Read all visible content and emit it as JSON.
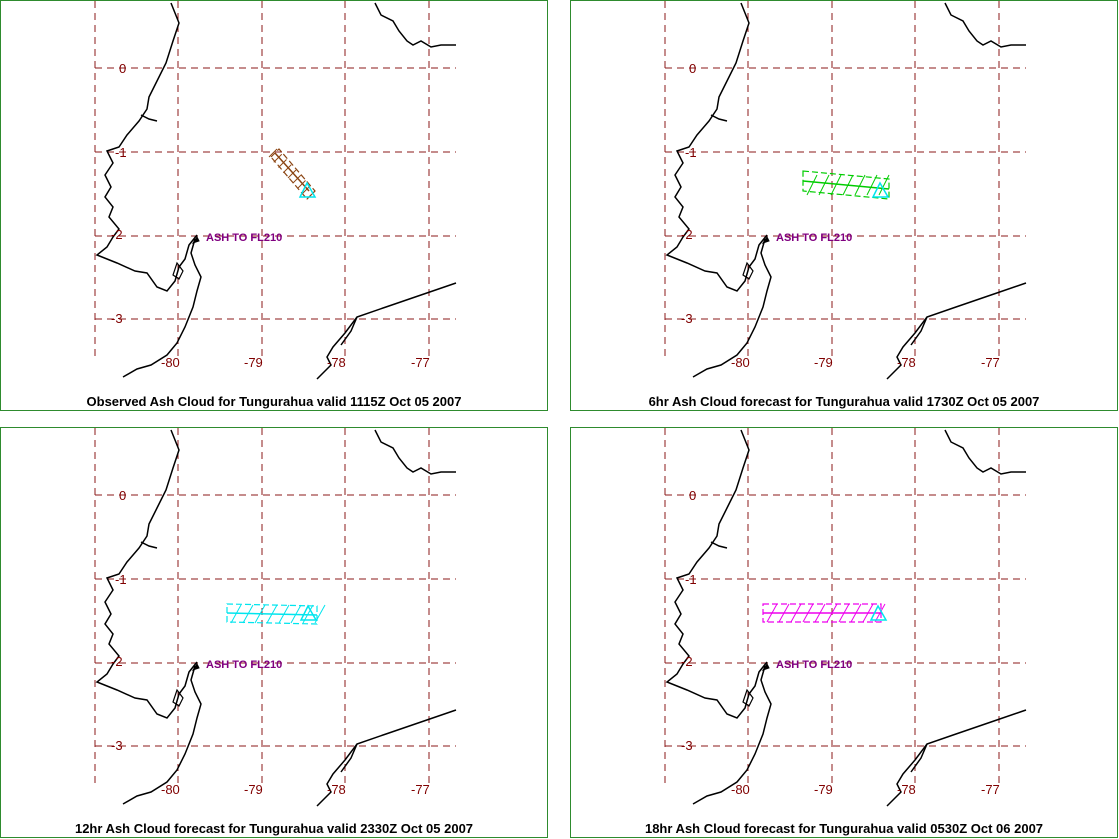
{
  "map": {
    "lon_labels": [
      "-80",
      "-79",
      "-78",
      "-77"
    ],
    "lat_labels": [
      "0",
      "-1",
      "-2",
      "-3"
    ],
    "ash_label": "ASH TO FL210",
    "volcano_icon": "volcano-triangle-icon",
    "colors": {
      "grid": "#8b1a1a",
      "coast": "#000000",
      "label": "#800000",
      "ash_text": "#800080",
      "volcano": "#00e5ee",
      "border": "#2e8b2e"
    }
  },
  "panels": [
    {
      "caption": "Observed Ash Cloud for Tungurahua valid 1115Z Oct 05 2007",
      "ash_color": "#8b4513"
    },
    {
      "caption": "6hr Ash Cloud forecast for Tungurahua valid 1730Z Oct 05 2007",
      "ash_color": "#00cc00"
    },
    {
      "caption": "12hr Ash Cloud forecast for Tungurahua valid 2330Z Oct 05 2007",
      "ash_color": "#00e5ee"
    },
    {
      "caption": "18hr Ash Cloud forecast for Tungurahua valid 0530Z Oct 06 2007",
      "ash_color": "#ee00ee"
    }
  ]
}
